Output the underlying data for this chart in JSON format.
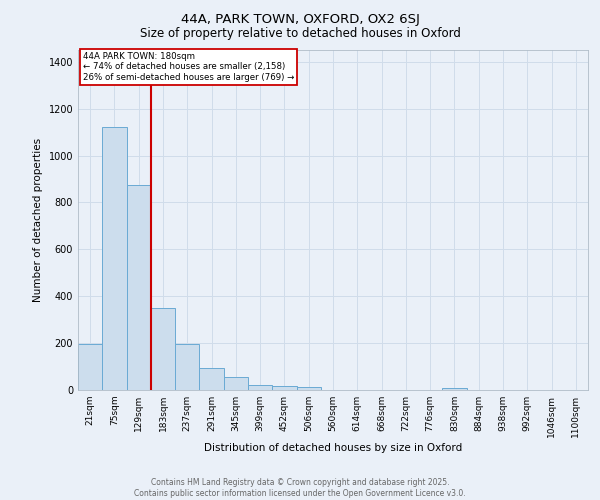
{
  "title1": "44A, PARK TOWN, OXFORD, OX2 6SJ",
  "title2": "Size of property relative to detached houses in Oxford",
  "xlabel": "Distribution of detached houses by size in Oxford",
  "ylabel": "Number of detached properties",
  "bar_labels": [
    "21sqm",
    "75sqm",
    "129sqm",
    "183sqm",
    "237sqm",
    "291sqm",
    "345sqm",
    "399sqm",
    "452sqm",
    "506sqm",
    "560sqm",
    "614sqm",
    "668sqm",
    "722sqm",
    "776sqm",
    "830sqm",
    "884sqm",
    "938sqm",
    "992sqm",
    "1046sqm",
    "1100sqm"
  ],
  "bar_values": [
    195,
    1120,
    875,
    350,
    195,
    95,
    55,
    20,
    15,
    12,
    0,
    0,
    0,
    0,
    0,
    10,
    0,
    0,
    0,
    0,
    0
  ],
  "bar_color": "#ccdded",
  "bar_edge_color": "#6aaad4",
  "grid_color": "#d0dcea",
  "background_color": "#eaf0f8",
  "marker_line_color": "#cc0000",
  "annotation_box_color": "#ffffff",
  "annotation_box_edge": "#cc0000",
  "marker_label": "44A PARK TOWN: 180sqm",
  "annotation_line1": "← 74% of detached houses are smaller (2,158)",
  "annotation_line2": "26% of semi-detached houses are larger (769) →",
  "footer_line1": "Contains HM Land Registry data © Crown copyright and database right 2025.",
  "footer_line2": "Contains public sector information licensed under the Open Government Licence v3.0.",
  "ylim": [
    0,
    1450
  ],
  "yticks": [
    0,
    200,
    400,
    600,
    800,
    1000,
    1200,
    1400
  ]
}
